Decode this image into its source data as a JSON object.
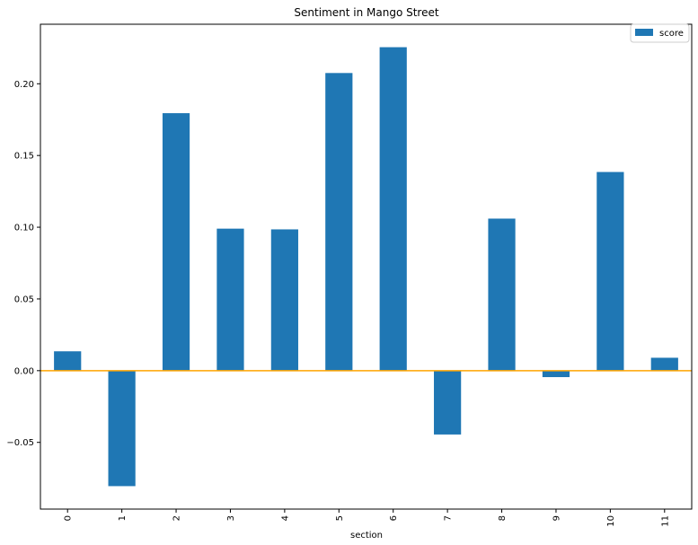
{
  "chart_data": {
    "type": "bar",
    "title": "Sentiment in Mango Street",
    "xlabel": "section",
    "ylabel": "",
    "categories": [
      "0",
      "1",
      "2",
      "3",
      "4",
      "5",
      "6",
      "7",
      "8",
      "9",
      "10",
      "11"
    ],
    "series": [
      {
        "name": "score",
        "values": [
          0.0135,
          -0.0805,
          0.1795,
          0.099,
          0.0985,
          0.2075,
          0.2255,
          -0.0445,
          0.106,
          -0.0045,
          0.1385,
          0.009
        ]
      }
    ],
    "ylim": [
      -0.0965,
      0.2415
    ],
    "yticks": [
      -0.05,
      0.0,
      0.05,
      0.1,
      0.15,
      0.2
    ],
    "ytick_labels": [
      "−0.05",
      "0.00",
      "0.05",
      "0.10",
      "0.15",
      "0.20"
    ],
    "x_tick_rotation": "vertical",
    "legend_position": "top-right",
    "grid": false,
    "colors": {
      "bar": "#1f77b4",
      "zero_line": "#ffa500"
    }
  }
}
